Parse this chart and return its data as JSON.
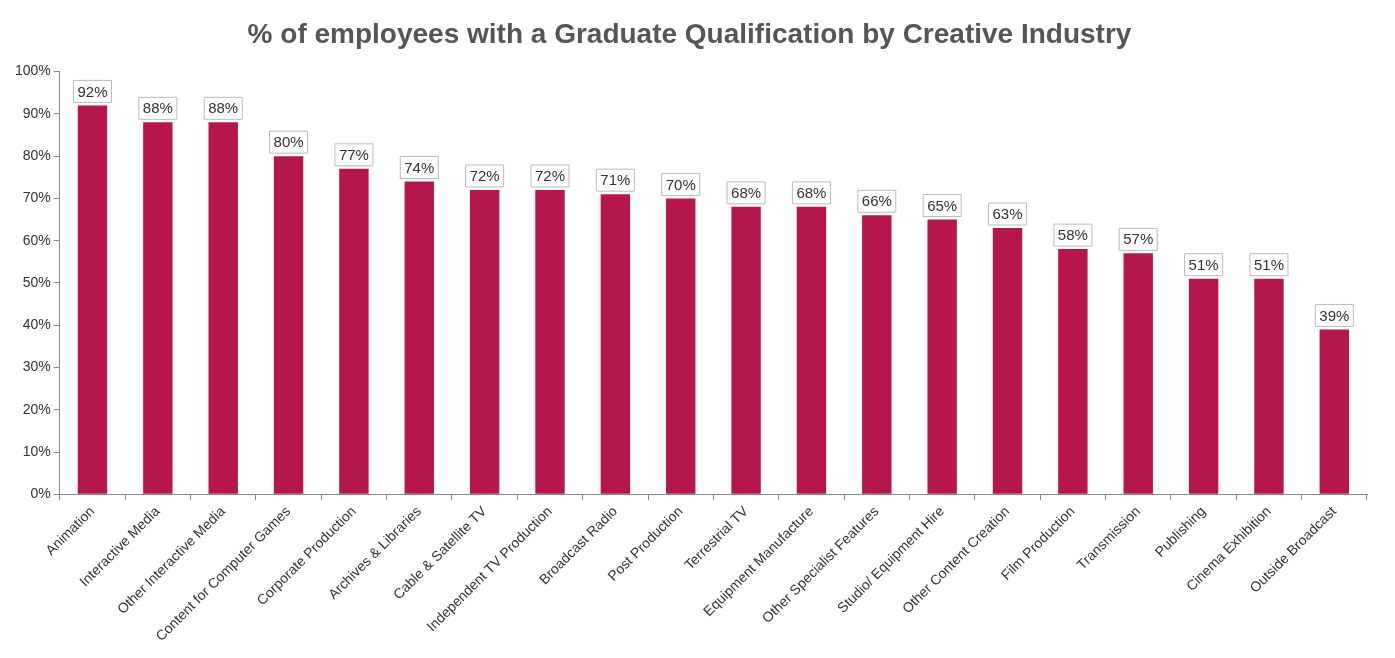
{
  "chart_data": {
    "type": "bar",
    "title": "% of employees with a Graduate Qualification by Creative Industry",
    "categories": [
      "Animation",
      "Interactive Media",
      "Other Interactive Media",
      "Content for Computer Games",
      "Corporate Production",
      "Archives & Libraries",
      "Cable & Satellite TV",
      "Independent TV Production",
      "Broadcast Radio",
      "Post Production",
      "Terrestrial TV",
      "Equipment Manufacture",
      "Other Specialist Features",
      "Studio/ Equipment Hire",
      "Other Content Creation",
      "Film Production",
      "Transmission",
      "Publishing",
      "Cinema Exhibition",
      "Outside Broadcast"
    ],
    "values": [
      92,
      88,
      88,
      80,
      77,
      74,
      72,
      72,
      71,
      70,
      68,
      68,
      66,
      65,
      63,
      58,
      57,
      51,
      51,
      39
    ],
    "value_labels": [
      "92%",
      "88%",
      "88%",
      "80%",
      "77%",
      "74%",
      "72%",
      "72%",
      "71%",
      "70%",
      "68%",
      "68%",
      "66%",
      "65%",
      "63%",
      "58%",
      "57%",
      "51%",
      "51%",
      "39%"
    ],
    "color": "#b5174d",
    "ylim": [
      0,
      100
    ],
    "yticks": [
      {
        "value": 0,
        "label": "0%"
      },
      {
        "value": 10,
        "label": "10%"
      },
      {
        "value": 20,
        "label": "20%"
      },
      {
        "value": 30,
        "label": "30%"
      },
      {
        "value": 40,
        "label": "40%"
      },
      {
        "value": 50,
        "label": "50%"
      },
      {
        "value": 60,
        "label": "60%"
      },
      {
        "value": 70,
        "label": "70%"
      },
      {
        "value": 80,
        "label": "80%"
      },
      {
        "value": 90,
        "label": "90%"
      },
      {
        "value": 100,
        "label": "100%"
      }
    ],
    "grid": false,
    "legend": false
  }
}
